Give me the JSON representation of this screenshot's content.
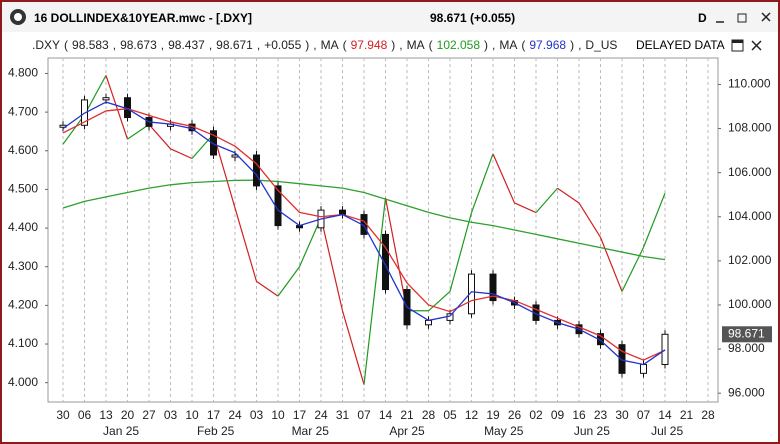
{
  "window": {
    "title": "16 DOLLINDEX&10YEAR.mwc - [.DXY]",
    "quote": "98.671 (+0.055)",
    "interval": "D"
  },
  "status": {
    "tokens": [
      {
        "text": ".DXY",
        "color": "#222"
      },
      {
        "text": "(",
        "color": "#222"
      },
      {
        "text": "98.583",
        "color": "#222"
      },
      {
        "text": ",",
        "color": "#222"
      },
      {
        "text": "98.673",
        "color": "#222"
      },
      {
        "text": ",",
        "color": "#222"
      },
      {
        "text": "98.437",
        "color": "#222"
      },
      {
        "text": ",",
        "color": "#222"
      },
      {
        "text": "98.671",
        "color": "#222"
      },
      {
        "text": ",",
        "color": "#222"
      },
      {
        "text": "+0.055",
        "color": "#222"
      },
      {
        "text": ")",
        "color": "#222"
      },
      {
        "text": ",",
        "color": "#222"
      },
      {
        "text": "MA",
        "color": "#222"
      },
      {
        "text": "(",
        "color": "#222"
      },
      {
        "text": "97.948",
        "color": "#d21f1f"
      },
      {
        "text": ")",
        "color": "#222"
      },
      {
        "text": ",",
        "color": "#222"
      },
      {
        "text": "MA",
        "color": "#222"
      },
      {
        "text": "(",
        "color": "#222"
      },
      {
        "text": "102.058",
        "color": "#1f9a1f"
      },
      {
        "text": ")",
        "color": "#222"
      },
      {
        "text": ",",
        "color": "#222"
      },
      {
        "text": "MA",
        "color": "#222"
      },
      {
        "text": "(",
        "color": "#222"
      },
      {
        "text": "97.968",
        "color": "#2233cc"
      },
      {
        "text": ")",
        "color": "#222"
      },
      {
        "text": ",",
        "color": "#222"
      },
      {
        "text": "D_US",
        "color": "#222"
      }
    ],
    "delayed": "DELAYED DATA"
  },
  "chart": {
    "x_labels": [
      "30",
      "06",
      "13",
      "20",
      "27",
      "03",
      "10",
      "17",
      "24",
      "03",
      "10",
      "17",
      "24",
      "31",
      "07",
      "14",
      "21",
      "28",
      "05",
      "12",
      "19",
      "26",
      "02",
      "09",
      "16",
      "23",
      "30",
      "07",
      "14",
      "21",
      "28"
    ],
    "month_labels": [
      "Jan 25",
      "Feb 25",
      "Mar 25",
      "Apr 25",
      "May 25",
      "Jun 25",
      "Jul 25"
    ],
    "left_ylim": [
      3.95,
      4.84
    ],
    "left_ticks": [
      {
        "value": 4.8,
        "label": "4.800"
      },
      {
        "value": 4.7,
        "label": "4.700"
      },
      {
        "value": 4.6,
        "label": "4.600"
      },
      {
        "value": 4.5,
        "label": "4.500"
      },
      {
        "value": 4.4,
        "label": "4.400"
      },
      {
        "value": 4.3,
        "label": "4.300"
      },
      {
        "value": 4.2,
        "label": "4.200"
      },
      {
        "value": 4.1,
        "label": "4.100"
      },
      {
        "value": 4.0,
        "label": "4.000"
      }
    ],
    "right_ylim": [
      95.6,
      111.2
    ],
    "right_ticks": [
      {
        "value": 110,
        "label": "110.000"
      },
      {
        "value": 108,
        "label": "108.000"
      },
      {
        "value": 106,
        "label": "106.000"
      },
      {
        "value": 104,
        "label": "104.000"
      },
      {
        "value": 102,
        "label": "102.000"
      },
      {
        "value": 100,
        "label": "100.000"
      },
      {
        "value": 98,
        "label": "98.000"
      },
      {
        "value": 96,
        "label": "96.000"
      }
    ],
    "last_price": 98.671,
    "close": [
      108.15,
      109.3,
      109.4,
      108.5,
      108.1,
      108.2,
      107.9,
      106.8,
      106.8,
      105.4,
      103.6,
      103.5,
      104.3,
      104.1,
      103.2,
      100.7,
      99.1,
      99.3,
      99.6,
      101.4,
      100.2,
      100.0,
      99.3,
      99.1,
      98.7,
      98.2,
      96.9,
      97.3,
      98.671
    ],
    "ma_blue": [
      108.0,
      108.7,
      109.2,
      108.9,
      108.3,
      108.2,
      108.0,
      107.3,
      106.9,
      105.9,
      104.3,
      103.6,
      103.9,
      104.1,
      103.6,
      101.8,
      99.9,
      99.3,
      99.5,
      100.6,
      100.5,
      100.1,
      99.6,
      99.2,
      98.9,
      98.4,
      97.5,
      97.3,
      97.968
    ],
    "ma_red": [
      107.8,
      108.3,
      108.8,
      108.9,
      108.6,
      108.3,
      108.1,
      107.7,
      107.2,
      106.4,
      105.2,
      104.2,
      104.0,
      104.1,
      103.8,
      102.6,
      101.0,
      100.0,
      99.7,
      100.2,
      100.4,
      100.2,
      99.8,
      99.4,
      99.0,
      98.6,
      97.9,
      97.5,
      97.948
    ],
    "ma_green": [
      104.4,
      104.7,
      104.9,
      105.1,
      105.3,
      105.45,
      105.55,
      105.6,
      105.65,
      105.66,
      105.6,
      105.5,
      105.4,
      105.3,
      105.1,
      104.8,
      104.5,
      104.2,
      103.95,
      103.75,
      103.6,
      103.4,
      103.2,
      103.0,
      102.8,
      102.6,
      102.4,
      102.2,
      102.058
    ],
    "yield": [
      4.617,
      4.693,
      4.795,
      4.63,
      4.668,
      4.605,
      4.58,
      4.643,
      4.452,
      4.262,
      4.224,
      4.3,
      4.427,
      4.186,
      3.995,
      4.478,
      4.186,
      4.186,
      4.236,
      4.44,
      4.592,
      4.465,
      4.44,
      4.503,
      4.465,
      4.376,
      4.236,
      4.35,
      4.49
    ]
  }
}
